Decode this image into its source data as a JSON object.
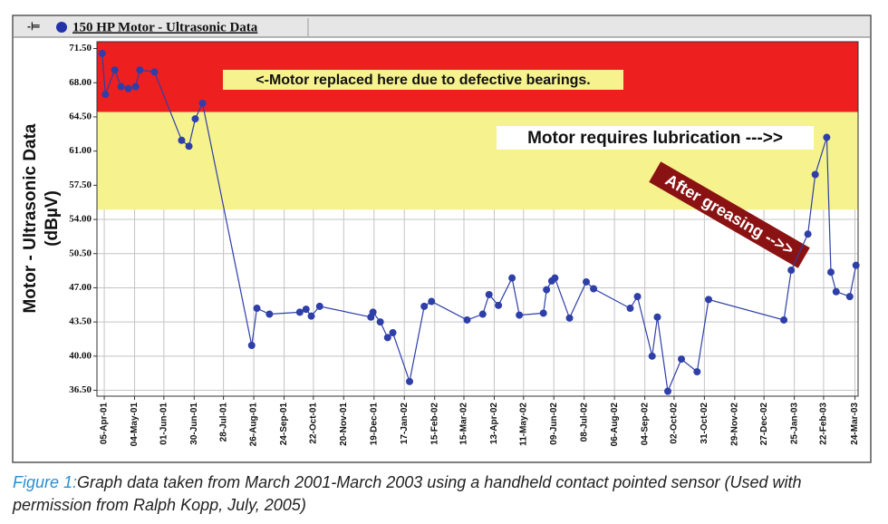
{
  "header": {
    "title": "150 HP Motor - Ultrasonic Data"
  },
  "chart_data": {
    "type": "line",
    "y_label": [
      "Motor - Ultrasonic Data",
      "(dBµV)"
    ],
    "x": [
      "2001-04-03",
      "2001-04-06",
      "2001-04-15",
      "2001-04-21",
      "2001-04-28",
      "2001-05-05",
      "2001-05-09",
      "2001-05-23",
      "2001-06-18",
      "2001-06-25",
      "2001-07-01",
      "2001-07-08",
      "2001-08-24",
      "2001-08-29",
      "2001-09-10",
      "2001-10-09",
      "2001-10-15",
      "2001-10-20",
      "2001-10-28",
      "2001-12-16",
      "2001-12-18",
      "2001-12-25",
      "2002-01-01",
      "2002-01-06",
      "2002-01-22",
      "2002-02-05",
      "2002-02-12",
      "2002-03-18",
      "2002-04-02",
      "2002-04-08",
      "2002-04-17",
      "2002-04-30",
      "2002-05-07",
      "2002-05-30",
      "2002-06-02",
      "2002-06-07",
      "2002-06-10",
      "2002-06-24",
      "2002-07-10",
      "2002-07-17",
      "2002-08-21",
      "2002-08-28",
      "2002-09-11",
      "2002-09-16",
      "2002-09-26",
      "2002-10-09",
      "2002-10-24",
      "2002-11-04",
      "2003-01-15",
      "2003-01-22",
      "2003-02-07",
      "2003-02-14",
      "2003-02-25",
      "2003-03-01",
      "2003-03-06",
      "2003-03-19",
      "2003-03-25"
    ],
    "values": [
      71.0,
      66.8,
      69.3,
      67.6,
      67.4,
      67.6,
      69.3,
      69.1,
      62.1,
      61.5,
      64.3,
      65.9,
      41.1,
      44.9,
      44.3,
      44.5,
      44.8,
      44.1,
      45.1,
      44.0,
      44.5,
      43.5,
      41.9,
      42.4,
      37.4,
      45.1,
      45.6,
      43.7,
      44.3,
      46.3,
      45.2,
      48.0,
      44.2,
      44.4,
      46.8,
      47.7,
      48.0,
      43.9,
      47.6,
      46.9,
      44.9,
      46.1,
      40.0,
      44.0,
      36.4,
      39.7,
      38.4,
      45.8,
      43.7,
      48.8,
      52.5,
      58.6,
      62.4,
      48.6,
      46.6,
      46.1,
      49.3
    ],
    "color": "#2e3fa8",
    "xlim": [
      "2001-03-29",
      "2003-03-27"
    ],
    "xticks": [
      {
        "value": "2001-04-05",
        "label": "05-Apr-01"
      },
      {
        "value": "2001-05-04",
        "label": "04-May-01"
      },
      {
        "value": "2001-06-01",
        "label": "01-Jun-01"
      },
      {
        "value": "2001-06-30",
        "label": "30-Jun-01"
      },
      {
        "value": "2001-07-28",
        "label": "28-Jul-01"
      },
      {
        "value": "2001-08-26",
        "label": "26-Aug-01"
      },
      {
        "value": "2001-09-24",
        "label": "24-Sep-01"
      },
      {
        "value": "2001-10-22",
        "label": "22-Oct-01"
      },
      {
        "value": "2001-11-20",
        "label": "20-Nov-01"
      },
      {
        "value": "2001-12-19",
        "label": "19-Dec-01"
      },
      {
        "value": "2002-01-17",
        "label": "17-Jan-02"
      },
      {
        "value": "2002-02-15",
        "label": "15-Feb-02"
      },
      {
        "value": "2002-03-15",
        "label": "15-Mar-02"
      },
      {
        "value": "2002-04-13",
        "label": "13-Apr-02"
      },
      {
        "value": "2002-05-11",
        "label": "11-May-02"
      },
      {
        "value": "2002-06-09",
        "label": "09-Jun-02"
      },
      {
        "value": "2002-07-08",
        "label": "08-Jul-02"
      },
      {
        "value": "2002-08-06",
        "label": "06-Aug-02"
      },
      {
        "value": "2002-09-04",
        "label": "04-Sep-02"
      },
      {
        "value": "2002-10-02",
        "label": "02-Oct-02"
      },
      {
        "value": "2002-10-31",
        "label": "31-Oct-02"
      },
      {
        "value": "2002-11-29",
        "label": "29-Nov-02"
      },
      {
        "value": "2002-12-27",
        "label": "27-Dec-02"
      },
      {
        "value": "2003-01-25",
        "label": "25-Jan-03"
      },
      {
        "value": "2003-02-22",
        "label": "22-Feb-03"
      },
      {
        "value": "2003-03-24",
        "label": "24-Mar-03"
      }
    ],
    "ylim": [
      35.9,
      72.2
    ],
    "yticks": [
      {
        "value": 36.5,
        "label": "36.50"
      },
      {
        "value": 40,
        "label": "40.00"
      },
      {
        "value": 43.5,
        "label": "43.50"
      },
      {
        "value": 47,
        "label": "47.00"
      },
      {
        "value": 50.5,
        "label": "50.50"
      },
      {
        "value": 54,
        "label": "54.00"
      },
      {
        "value": 57.5,
        "label": "57.50"
      },
      {
        "value": 61,
        "label": "61.00"
      },
      {
        "value": 64.5,
        "label": "64.50"
      },
      {
        "value": 68,
        "label": "68.00"
      },
      {
        "value": 71.5,
        "label": "71.50"
      }
    ],
    "grid": true,
    "bands": [
      {
        "from": 65,
        "to": 72.2,
        "color": "#ee1f1f"
      },
      {
        "from": 55,
        "to": 65,
        "color": "#f6f28e"
      }
    ],
    "annotations": [
      "<-Motor replaced here due to defective bearings.",
      "Motor requires lubrication --->>",
      "After greasing -->>"
    ]
  },
  "caption": {
    "label": "Figure 1:",
    "text": "Graph data taken from March 2001-March 2003 using a handheld contact pointed sensor (Used with permission from Ralph Kopp, July, 2005)"
  }
}
